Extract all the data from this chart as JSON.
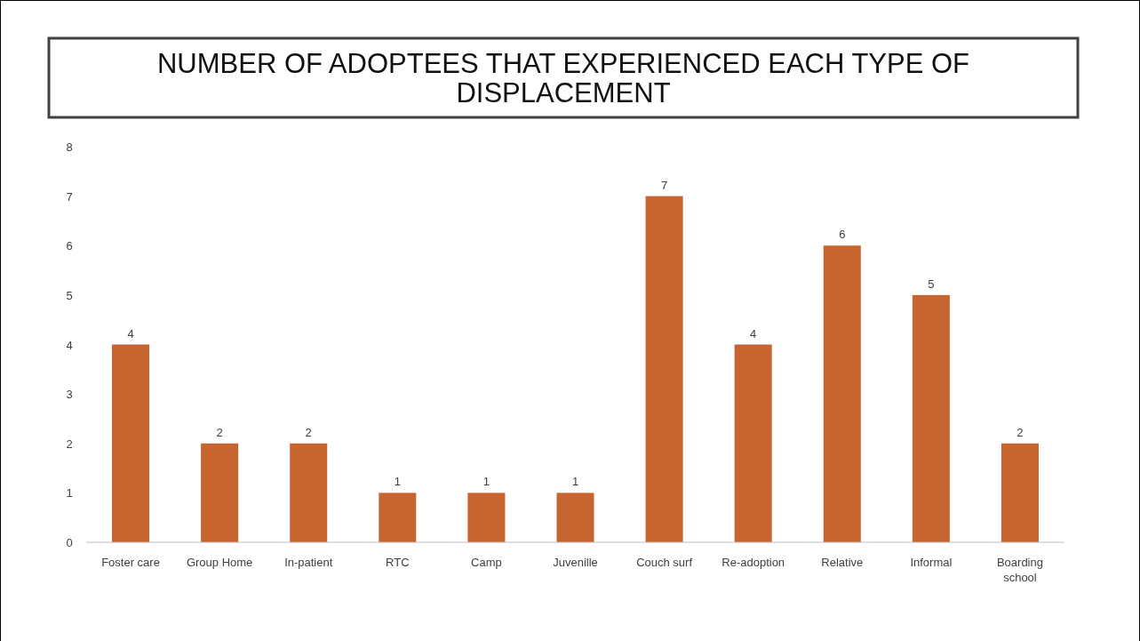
{
  "chart_data": {
    "type": "bar",
    "title": "NUMBER OF ADOPTEES THAT EXPERIENCED EACH TYPE OF DISPLACEMENT",
    "categories": [
      "Foster care",
      "Group Home",
      "In-patient",
      "RTC",
      "Camp",
      "Juvenille",
      "Couch surf",
      "Re-adoption",
      "Relative",
      "Informal",
      "Boarding school"
    ],
    "values": [
      4,
      2,
      2,
      1,
      1,
      1,
      7,
      4,
      6,
      5,
      2
    ],
    "color": "#c66530",
    "ylim": [
      0,
      8
    ],
    "yticks": [
      0,
      1,
      2,
      3,
      4,
      5,
      6,
      7,
      8
    ],
    "data_labels": true,
    "grid": false
  }
}
